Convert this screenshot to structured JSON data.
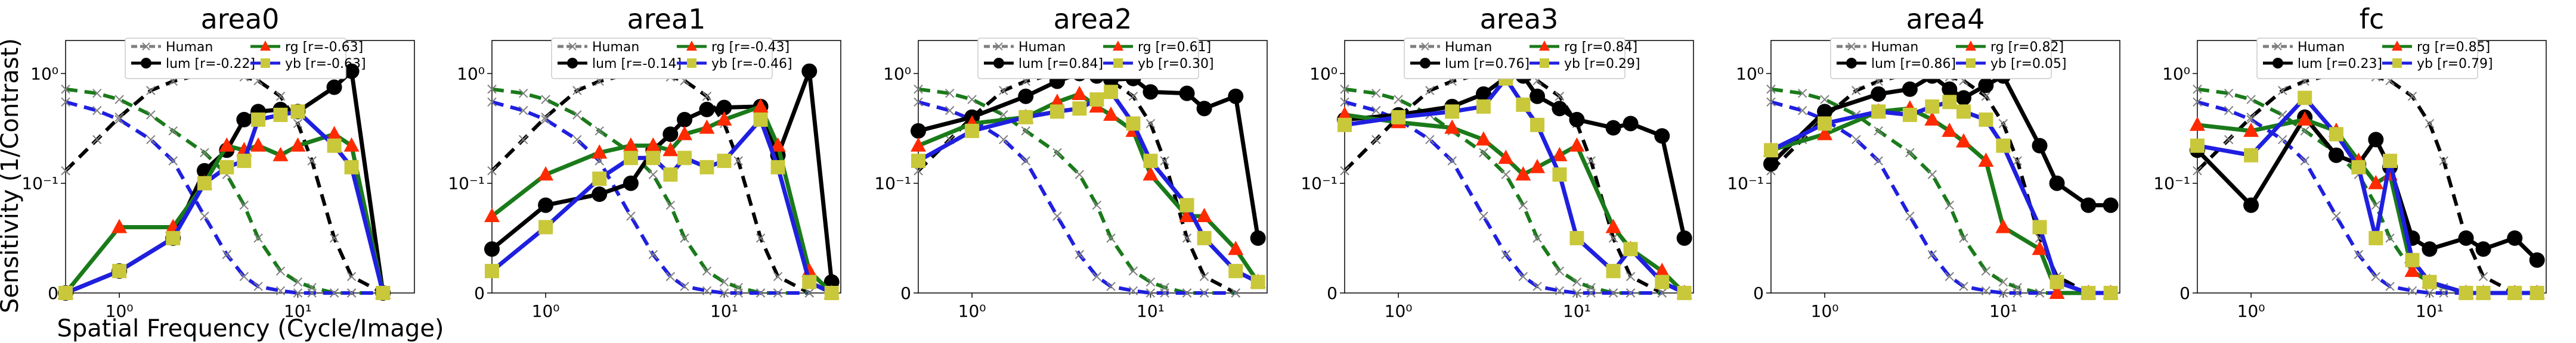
{
  "figure": {
    "ylabel": "Sensitivity (1/Contrast)",
    "xlabel": "Spatial Frequency (Cycle/Image)"
  },
  "legend_labels": {
    "human": "Human",
    "lum": "lum",
    "rg": "rg",
    "yb": "yb"
  },
  "colors": {
    "human": "#7f7f7f",
    "lum": "#000000",
    "rg": "#1a7a1a",
    "rg_marker": "#ff2a00",
    "yb": "#1f1fe0",
    "yb_marker": "#c8c83a"
  },
  "axis": {
    "x_scale": "log",
    "y_scale": "symlog",
    "xlim": [
      0.5,
      45
    ],
    "ylim": [
      0,
      2
    ],
    "x_ticks": [
      {
        "value": 1,
        "label": "10⁰"
      },
      {
        "value": 10,
        "label": "10¹"
      }
    ],
    "y_ticks": [
      {
        "value": 0,
        "label": "0"
      },
      {
        "value": 0.1,
        "label": "10⁻¹"
      },
      {
        "value": 1,
        "label": "10⁰"
      }
    ]
  },
  "human_curve": {
    "x": [
      0.5,
      0.75,
      1,
      1.5,
      2,
      3,
      4,
      5,
      6,
      8,
      10,
      12,
      16,
      20,
      30
    ],
    "lum": [
      0.13,
      0.25,
      0.4,
      0.7,
      0.85,
      1.0,
      1.0,
      0.93,
      0.86,
      0.62,
      0.35,
      0.16,
      0.05,
      0.015,
      0.0
    ],
    "rg": [
      0.72,
      0.66,
      0.58,
      0.42,
      0.3,
      0.19,
      0.12,
      0.08,
      0.05,
      0.02,
      0.01,
      0.005,
      0.0,
      0.0,
      0.0
    ],
    "yb": [
      0.55,
      0.46,
      0.38,
      0.25,
      0.16,
      0.07,
      0.035,
      0.015,
      0.006,
      0.002,
      0.0,
      0.0,
      0.0,
      0.0,
      0.0
    ]
  },
  "chart_data": [
    {
      "type": "line",
      "title": "area0",
      "legend": {
        "lum_r": "[r=-0.22]",
        "rg_r": "[r=-0.63]",
        "yb_r": "[r=-0.63]"
      },
      "x": [
        0.5,
        1,
        2,
        3,
        4,
        5,
        6,
        8,
        10,
        16,
        20,
        30,
        40
      ],
      "series": [
        {
          "name": "lum",
          "values": [
            0.0,
            0.02,
            0.05,
            0.13,
            0.2,
            0.38,
            0.45,
            0.47,
            0.45,
            0.75,
            1.05,
            0.0,
            null
          ]
        },
        {
          "name": "rg",
          "values": [
            0.0,
            0.06,
            0.06,
            0.1,
            0.22,
            0.2,
            0.22,
            0.18,
            0.22,
            0.28,
            0.22,
            0.0,
            null
          ]
        },
        {
          "name": "yb",
          "values": [
            0.0,
            0.02,
            0.05,
            0.1,
            0.14,
            0.16,
            0.38,
            0.42,
            0.45,
            0.22,
            0.14,
            0.0,
            null
          ]
        }
      ]
    },
    {
      "type": "line",
      "title": "area1",
      "legend": {
        "lum_r": "[r=-0.14]",
        "rg_r": "[r=-0.43]",
        "yb_r": "[r=-0.46]"
      },
      "x": [
        0.5,
        1,
        2,
        3,
        4,
        5,
        6,
        8,
        10,
        16,
        20,
        30,
        40
      ],
      "series": [
        {
          "name": "lum",
          "values": [
            0.04,
            0.08,
            0.09,
            0.1,
            0.2,
            0.28,
            0.38,
            0.47,
            0.49,
            0.5,
            0.18,
            1.05,
            0.01
          ]
        },
        {
          "name": "rg",
          "values": [
            0.07,
            0.12,
            0.19,
            0.22,
            0.22,
            0.2,
            0.28,
            0.32,
            0.38,
            0.5,
            0.22,
            0.02,
            0.0
          ]
        },
        {
          "name": "yb",
          "values": [
            0.02,
            0.06,
            0.11,
            0.17,
            0.17,
            0.12,
            0.17,
            0.14,
            0.16,
            0.38,
            0.14,
            0.01,
            0.0
          ]
        }
      ]
    },
    {
      "type": "line",
      "title": "area2",
      "legend": {
        "lum_r": "[r=0.84]",
        "rg_r": "[r=0.61]",
        "yb_r": "[r=0.30]"
      },
      "x": [
        0.5,
        1,
        2,
        3,
        4,
        5,
        6,
        8,
        10,
        16,
        20,
        30,
        40
      ],
      "series": [
        {
          "name": "lum",
          "values": [
            0.3,
            0.4,
            0.62,
            0.85,
            1.0,
            0.95,
            0.88,
            0.9,
            0.68,
            0.66,
            0.48,
            0.62,
            0.05
          ]
        },
        {
          "name": "rg",
          "values": [
            0.22,
            0.35,
            0.4,
            0.55,
            0.65,
            0.5,
            0.42,
            0.3,
            0.12,
            0.07,
            0.07,
            0.04,
            0.01
          ]
        },
        {
          "name": "yb",
          "values": [
            0.16,
            0.3,
            0.4,
            0.45,
            0.48,
            0.58,
            0.68,
            0.35,
            0.16,
            0.08,
            0.05,
            0.02,
            0.01
          ]
        }
      ]
    },
    {
      "type": "line",
      "title": "area3",
      "legend": {
        "lum_r": "[r=0.76]",
        "rg_r": "[r=0.84]",
        "yb_r": "[r=0.29]"
      },
      "x": [
        0.5,
        1,
        2,
        3,
        4,
        5,
        6,
        8,
        10,
        16,
        20,
        30,
        40
      ],
      "series": [
        {
          "name": "lum",
          "values": [
            0.38,
            0.42,
            0.5,
            0.65,
            0.92,
            0.95,
            0.62,
            0.48,
            0.38,
            0.32,
            0.35,
            0.27,
            0.05
          ]
        },
        {
          "name": "rg",
          "values": [
            0.42,
            0.36,
            0.32,
            0.25,
            0.17,
            0.12,
            0.14,
            0.18,
            0.22,
            0.06,
            0.04,
            0.02,
            0.0
          ]
        },
        {
          "name": "yb",
          "values": [
            0.34,
            0.4,
            0.45,
            0.5,
            0.9,
            0.52,
            0.34,
            0.12,
            0.05,
            0.02,
            0.04,
            0.01,
            0.0
          ]
        }
      ]
    },
    {
      "type": "line",
      "title": "area4",
      "legend": {
        "lum_r": "[r=0.86]",
        "rg_r": "[r=0.82]",
        "yb_r": "[r=0.05]"
      },
      "x": [
        0.5,
        1,
        2,
        3,
        4,
        5,
        6,
        8,
        10,
        16,
        20,
        30,
        40
      ],
      "series": [
        {
          "name": "lum",
          "values": [
            0.15,
            0.45,
            0.65,
            0.72,
            0.95,
            0.72,
            0.6,
            0.78,
            0.95,
            0.22,
            0.1,
            0.08,
            0.08
          ]
        },
        {
          "name": "rg",
          "values": [
            0.2,
            0.28,
            0.45,
            0.48,
            0.38,
            0.3,
            0.24,
            0.16,
            0.06,
            0.04,
            0.0,
            0.0,
            0.0
          ]
        },
        {
          "name": "yb",
          "values": [
            0.2,
            0.35,
            0.45,
            0.42,
            0.5,
            0.55,
            0.45,
            0.38,
            0.22,
            0.06,
            0.01,
            0.0,
            0.0
          ]
        }
      ]
    },
    {
      "type": "line",
      "title": "fc",
      "legend": {
        "lum_r": "[r=0.23]",
        "rg_r": "[r=0.85]",
        "yb_r": "[r=0.79]"
      },
      "x": [
        0.5,
        1,
        2,
        3,
        4,
        5,
        6,
        8,
        10,
        16,
        20,
        30,
        40
      ],
      "series": [
        {
          "name": "lum",
          "values": [
            0.2,
            0.08,
            0.4,
            0.18,
            0.15,
            0.25,
            0.14,
            0.05,
            0.04,
            0.05,
            0.04,
            0.05,
            0.03
          ]
        },
        {
          "name": "rg",
          "values": [
            0.34,
            0.3,
            0.38,
            0.3,
            0.16,
            0.1,
            0.12,
            0.02,
            0.01,
            0.0,
            0.0,
            0.0,
            0.0
          ]
        },
        {
          "name": "yb",
          "values": [
            0.22,
            0.18,
            0.6,
            0.28,
            0.14,
            0.05,
            0.16,
            0.03,
            0.01,
            0.0,
            0.0,
            0.0,
            0.0
          ]
        }
      ]
    }
  ]
}
